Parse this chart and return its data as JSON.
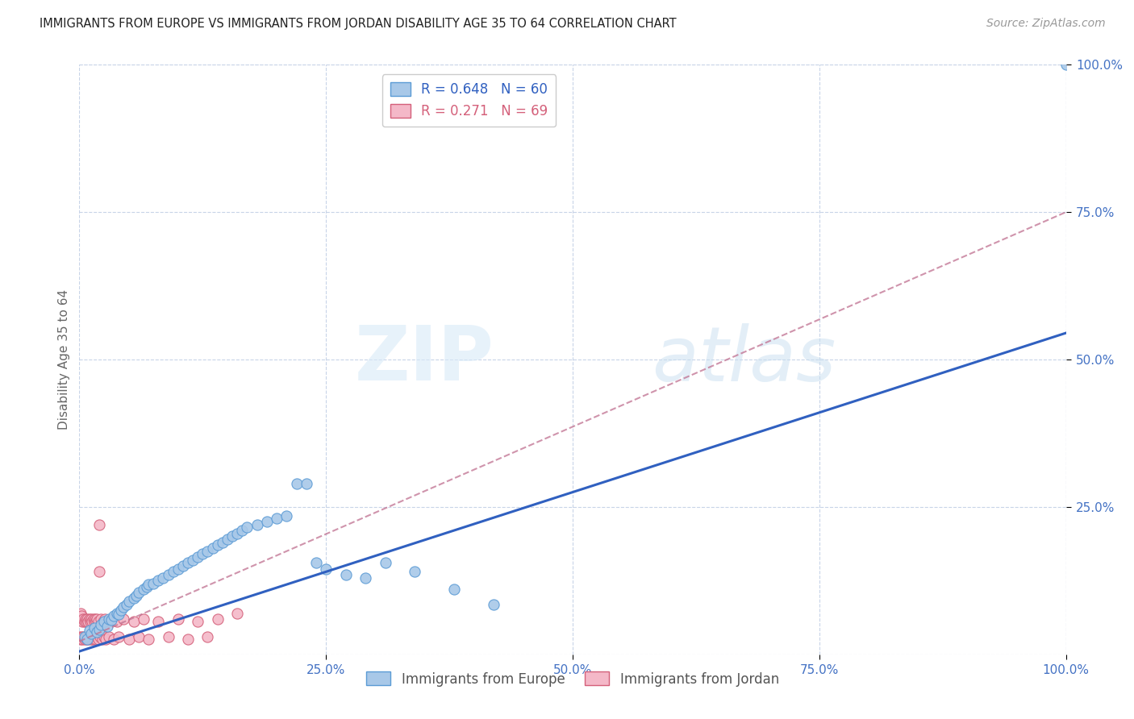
{
  "title": "IMMIGRANTS FROM EUROPE VS IMMIGRANTS FROM JORDAN DISABILITY AGE 35 TO 64 CORRELATION CHART",
  "source": "Source: ZipAtlas.com",
  "ylabel": "Disability Age 35 to 64",
  "xlim": [
    0,
    1.0
  ],
  "ylim": [
    0,
    1.0
  ],
  "xtick_labels": [
    "0.0%",
    "25.0%",
    "50.0%",
    "75.0%",
    "100.0%"
  ],
  "xtick_vals": [
    0.0,
    0.25,
    0.5,
    0.75,
    1.0
  ],
  "right_ytick_labels": [
    "25.0%",
    "50.0%",
    "75.0%",
    "100.0%"
  ],
  "right_ytick_vals": [
    0.25,
    0.5,
    0.75,
    1.0
  ],
  "europe_color": "#a8c8e8",
  "europe_edge_color": "#5b9bd5",
  "jordan_color": "#f4b8c8",
  "jordan_edge_color": "#d4607a",
  "europe_R": 0.648,
  "europe_N": 60,
  "jordan_R": 0.271,
  "jordan_N": 69,
  "europe_line_color": "#3060c0",
  "jordan_line_color": "#c07090",
  "legend_label_europe": "Immigrants from Europe",
  "legend_label_jordan": "Immigrants from Jordan",
  "watermark_zip": "ZIP",
  "watermark_atlas": "atlas",
  "background_color": "#ffffff",
  "grid_color": "#c8d4e8",
  "europe_scatter_x": [
    0.005,
    0.008,
    0.01,
    0.012,
    0.015,
    0.018,
    0.02,
    0.022,
    0.025,
    0.028,
    0.03,
    0.032,
    0.035,
    0.038,
    0.04,
    0.042,
    0.045,
    0.048,
    0.05,
    0.055,
    0.058,
    0.06,
    0.065,
    0.068,
    0.07,
    0.075,
    0.08,
    0.085,
    0.09,
    0.095,
    0.1,
    0.105,
    0.11,
    0.115,
    0.12,
    0.125,
    0.13,
    0.135,
    0.14,
    0.145,
    0.15,
    0.155,
    0.16,
    0.165,
    0.17,
    0.18,
    0.19,
    0.2,
    0.21,
    0.22,
    0.23,
    0.24,
    0.25,
    0.27,
    0.29,
    0.31,
    0.34,
    0.38,
    0.42,
    1.0
  ],
  "europe_scatter_y": [
    0.03,
    0.025,
    0.04,
    0.035,
    0.045,
    0.038,
    0.042,
    0.05,
    0.055,
    0.048,
    0.06,
    0.058,
    0.065,
    0.07,
    0.068,
    0.075,
    0.08,
    0.085,
    0.09,
    0.095,
    0.1,
    0.105,
    0.11,
    0.115,
    0.118,
    0.12,
    0.125,
    0.13,
    0.135,
    0.14,
    0.145,
    0.15,
    0.155,
    0.16,
    0.165,
    0.17,
    0.175,
    0.18,
    0.185,
    0.19,
    0.195,
    0.2,
    0.205,
    0.21,
    0.215,
    0.22,
    0.225,
    0.23,
    0.235,
    0.29,
    0.29,
    0.155,
    0.145,
    0.135,
    0.13,
    0.155,
    0.14,
    0.11,
    0.085,
    1.0
  ],
  "jordan_scatter_x": [
    0.0,
    0.0,
    0.001,
    0.001,
    0.002,
    0.002,
    0.003,
    0.003,
    0.004,
    0.004,
    0.005,
    0.005,
    0.006,
    0.006,
    0.007,
    0.007,
    0.008,
    0.008,
    0.009,
    0.009,
    0.01,
    0.01,
    0.011,
    0.011,
    0.012,
    0.012,
    0.013,
    0.013,
    0.014,
    0.014,
    0.015,
    0.015,
    0.016,
    0.016,
    0.017,
    0.017,
    0.018,
    0.018,
    0.019,
    0.019,
    0.02,
    0.02,
    0.021,
    0.022,
    0.023,
    0.024,
    0.025,
    0.026,
    0.027,
    0.028,
    0.03,
    0.032,
    0.035,
    0.038,
    0.04,
    0.045,
    0.05,
    0.055,
    0.06,
    0.065,
    0.07,
    0.08,
    0.09,
    0.1,
    0.11,
    0.12,
    0.13,
    0.14,
    0.16
  ],
  "jordan_scatter_y": [
    0.03,
    0.06,
    0.025,
    0.07,
    0.03,
    0.065,
    0.025,
    0.055,
    0.03,
    0.06,
    0.025,
    0.055,
    0.03,
    0.06,
    0.025,
    0.055,
    0.03,
    0.06,
    0.025,
    0.055,
    0.03,
    0.06,
    0.025,
    0.055,
    0.03,
    0.06,
    0.025,
    0.055,
    0.03,
    0.06,
    0.025,
    0.055,
    0.03,
    0.06,
    0.025,
    0.055,
    0.03,
    0.06,
    0.025,
    0.055,
    0.14,
    0.22,
    0.03,
    0.06,
    0.025,
    0.055,
    0.03,
    0.06,
    0.025,
    0.055,
    0.03,
    0.06,
    0.025,
    0.055,
    0.03,
    0.06,
    0.025,
    0.055,
    0.03,
    0.06,
    0.025,
    0.055,
    0.03,
    0.06,
    0.025,
    0.055,
    0.03,
    0.06,
    0.07
  ],
  "europe_line_x": [
    0.0,
    1.0
  ],
  "europe_line_y": [
    0.005,
    0.545
  ],
  "jordan_line_x": [
    0.0,
    1.0
  ],
  "jordan_line_y": [
    0.022,
    0.75
  ]
}
